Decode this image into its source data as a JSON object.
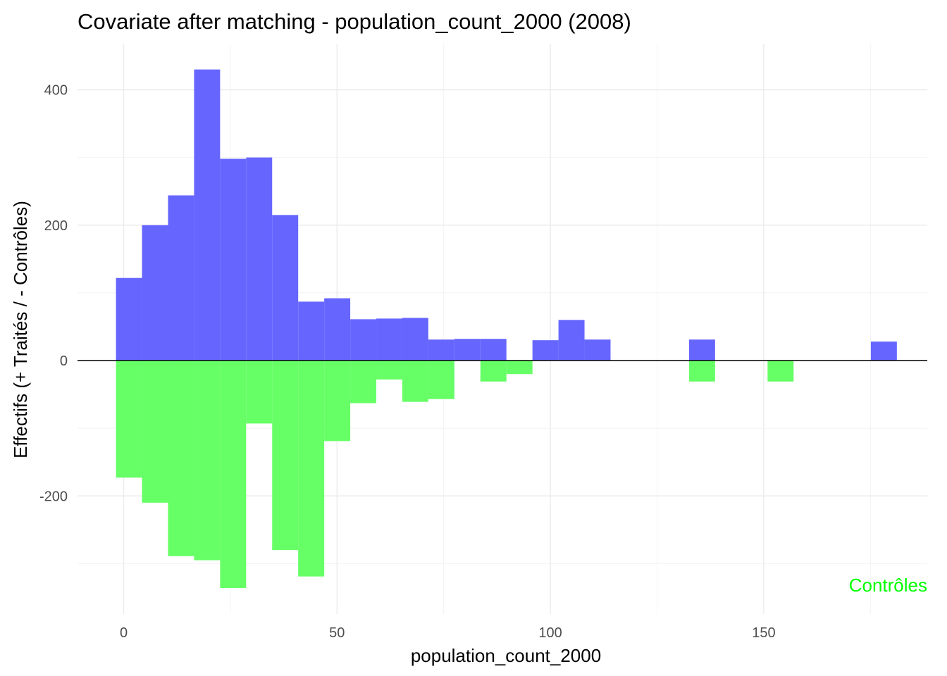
{
  "chart_data": {
    "type": "bar",
    "title": "Covariate after matching - population_count_2000 (2008)",
    "xlabel": "population_count_2000",
    "ylabel": "Effectifs (+ Traités / - Contrôles)",
    "xlim": [
      -2,
      188
    ],
    "ylim": [
      -375,
      435
    ],
    "x_ticks": [
      0,
      50,
      100,
      150
    ],
    "y_ticks": [
      -200,
      0,
      200,
      400
    ],
    "bin_width": 6.1,
    "grid": true,
    "annotation": {
      "text": "Contrôles",
      "color": "#00ff00",
      "placement": "bottom-right"
    },
    "series": [
      {
        "group": "treated",
        "color": "#6666ff",
        "bins": [
          {
            "x0": -1.8,
            "x1": 4.3,
            "value": 122
          },
          {
            "x0": 4.3,
            "x1": 10.4,
            "value": 200
          },
          {
            "x0": 10.4,
            "x1": 16.5,
            "value": 244
          },
          {
            "x0": 16.5,
            "x1": 22.6,
            "value": 430
          },
          {
            "x0": 22.6,
            "x1": 28.7,
            "value": 298
          },
          {
            "x0": 28.7,
            "x1": 34.8,
            "value": 300
          },
          {
            "x0": 34.8,
            "x1": 40.9,
            "value": 215
          },
          {
            "x0": 40.9,
            "x1": 47.0,
            "value": 87
          },
          {
            "x0": 47.0,
            "x1": 53.1,
            "value": 92
          },
          {
            "x0": 53.1,
            "x1": 59.2,
            "value": 61
          },
          {
            "x0": 59.2,
            "x1": 65.3,
            "value": 62
          },
          {
            "x0": 65.3,
            "x1": 71.4,
            "value": 63
          },
          {
            "x0": 71.4,
            "x1": 77.5,
            "value": 31
          },
          {
            "x0": 77.5,
            "x1": 83.6,
            "value": 32
          },
          {
            "x0": 83.6,
            "x1": 89.7,
            "value": 32
          },
          {
            "x0": 95.8,
            "x1": 101.9,
            "value": 30
          },
          {
            "x0": 101.9,
            "x1": 108.0,
            "value": 60
          },
          {
            "x0": 108.0,
            "x1": 114.1,
            "value": 31
          },
          {
            "x0": 132.5,
            "x1": 138.6,
            "value": 31
          },
          {
            "x0": 175.1,
            "x1": 181.2,
            "value": 28
          }
        ]
      },
      {
        "group": "controls",
        "color": "#66ff66",
        "bins": [
          {
            "x0": -1.8,
            "x1": 4.3,
            "value": -173
          },
          {
            "x0": 4.3,
            "x1": 10.4,
            "value": -210
          },
          {
            "x0": 10.4,
            "x1": 16.5,
            "value": -289
          },
          {
            "x0": 16.5,
            "x1": 22.6,
            "value": -295
          },
          {
            "x0": 22.6,
            "x1": 28.7,
            "value": -336
          },
          {
            "x0": 28.7,
            "x1": 34.8,
            "value": -93
          },
          {
            "x0": 34.8,
            "x1": 40.9,
            "value": -280
          },
          {
            "x0": 40.9,
            "x1": 47.0,
            "value": -319
          },
          {
            "x0": 47.0,
            "x1": 53.1,
            "value": -119
          },
          {
            "x0": 53.1,
            "x1": 59.2,
            "value": -63
          },
          {
            "x0": 59.2,
            "x1": 65.3,
            "value": -28
          },
          {
            "x0": 65.3,
            "x1": 71.4,
            "value": -61
          },
          {
            "x0": 71.4,
            "x1": 77.5,
            "value": -57
          },
          {
            "x0": 83.6,
            "x1": 89.7,
            "value": -31
          },
          {
            "x0": 89.7,
            "x1": 95.8,
            "value": -20
          },
          {
            "x0": 132.5,
            "x1": 138.6,
            "value": -31
          },
          {
            "x0": 150.9,
            "x1": 157.0,
            "value": -31
          }
        ]
      }
    ]
  }
}
